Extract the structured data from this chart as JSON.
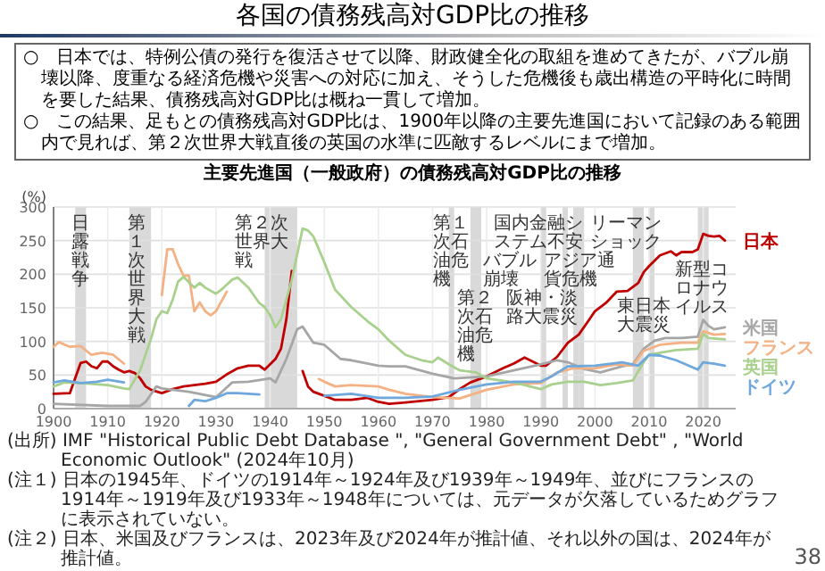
{
  "chart_data": {
    "type": "line",
    "title": "各国の債務残高対GDP比の推移",
    "subtitle": "主要先進国（一般政府）の債務残高対GDP比の推移",
    "ylabel": "(%)",
    "annotations": [
      "○　日本では、特例公債の発行を復活させて以降、財政健全化の取組を進めてきたが、バブル崩壊以降、度重なる経済危機や災害への対応に加え、そうした危機後も歳出構造の平時化に時間を要した結果、債務残高対GDP比は概ね一貫して増加。",
      "○　この結果、足もとの債務残高対GDP比は、1900年以降の主要先進国において記録のある範囲内で見れば、第２次世界大戦直後の英国の水準に匹敵するレベルにまで増加。",
      "(出所) IMF \"Historical Public Debt Database \", \"General Government Debt\" , \"World Economic Outlook\" (2024年10月)",
      "(注１) 日本の1945年、ドイツの1914年～1924年及び1939年～1949年、並びにフランスの1914年～1919年及び1933年～1948年については、元データが欠落しているためグラフに表示されていない。",
      "(注２) 日本、米国及びフランスは、2023年及び2024年が推計値、それ以外の国は、2024年が推計値。",
      "38"
    ],
    "xlim": [
      1900,
      2026
    ],
    "ylim": [
      0,
      300
    ],
    "xticks": [
      1900,
      1910,
      1920,
      1930,
      1940,
      1950,
      1960,
      1970,
      1980,
      1990,
      2000,
      2010,
      2020
    ],
    "yticks": [
      0,
      50,
      100,
      150,
      200,
      250,
      300
    ],
    "grid": true,
    "bands": [
      {
        "axis": "x",
        "from": 1904,
        "to": 1906,
        "label": "日露戦争",
        "color": "#d9d9d9"
      },
      {
        "axis": "x",
        "from": 1914,
        "to": 1918,
        "label": "第１次世界大戦",
        "color": "#d9d9d9"
      },
      {
        "axis": "x",
        "from": 1939,
        "to": 1945,
        "label": "第２次世界大戦",
        "color": "#d9d9d9"
      },
      {
        "axis": "x",
        "from": 1973,
        "to": 1974,
        "label": "第１次石油危機",
        "color": "#d9d9d9"
      },
      {
        "axis": "x",
        "from": 1977,
        "to": 1979,
        "label": "第２次石油危機",
        "color": "#d9d9d9"
      },
      {
        "axis": "x",
        "from": 1990,
        "to": 1991,
        "label": "バブル崩壊",
        "color": "#d9d9d9"
      },
      {
        "axis": "x",
        "from": 1994,
        "to": 1995,
        "label": "阪神・淡路大震災",
        "color": "#d9d9d9"
      },
      {
        "axis": "x",
        "from": 1996,
        "to": 1997,
        "label": "国内金融システム不安",
        "color": "#d9d9d9"
      },
      {
        "axis": "x",
        "from": 1997,
        "to": 1998,
        "label": "アジア通貨危機",
        "color": "#d9d9d9"
      },
      {
        "axis": "x",
        "from": 2007,
        "to": 2009,
        "label": "リーマンショック",
        "color": "#d9d9d9"
      },
      {
        "axis": "x",
        "from": 2010,
        "to": 2011,
        "label": "東日本大震災",
        "color": "#d9d9d9"
      },
      {
        "axis": "x",
        "from": 2019,
        "to": 2021,
        "label": "新型コロナウイルス",
        "color": "#d9d9d9"
      }
    ],
    "series": [
      {
        "name": "日本",
        "color": "#c00000",
        "x": [
          1900,
          1903,
          1905,
          1906,
          1907,
          1908,
          1909,
          1910,
          1911,
          1912,
          1913,
          1914,
          1915,
          1916,
          1917,
          1918,
          1920,
          1921,
          1922,
          1924,
          1926,
          1928,
          1930,
          1932,
          1934,
          1936,
          1938,
          1939,
          1940,
          1941,
          1942,
          1943,
          1944,
          1945,
          1946,
          1947,
          1948,
          1950,
          1952,
          1955,
          1958,
          1960,
          1962,
          1965,
          1970,
          1973,
          1975,
          1977,
          1980,
          1983,
          1985,
          1987,
          1988,
          1990,
          1991,
          1993,
          1995,
          1997,
          1999,
          2000,
          2002,
          2004,
          2006,
          2007,
          2008,
          2009,
          2010,
          2012,
          2014,
          2015,
          2016,
          2018,
          2019,
          2020,
          2021,
          2022,
          2023,
          2024
        ],
        "values": [
          22,
          23,
          68,
          70,
          63,
          60,
          70,
          70,
          63,
          58,
          54,
          56,
          53,
          45,
          33,
          28,
          23,
          26,
          29,
          33,
          35,
          37,
          40,
          51,
          60,
          64,
          64,
          58,
          66,
          74,
          89,
          133,
          205,
          null,
          56,
          33,
          25,
          19,
          13,
          13,
          16,
          10,
          7,
          9,
          13,
          17,
          29,
          39,
          48,
          60,
          67,
          76,
          72,
          64,
          64,
          77,
          98,
          110,
          133,
          145,
          157,
          174,
          175,
          181,
          187,
          203,
          212,
          228,
          234,
          228,
          233,
          233,
          237,
          260,
          257,
          256,
          257,
          250
        ]
      },
      {
        "name": "米国",
        "color": "#a6a6a6",
        "x": [
          1900,
          1910,
          1916,
          1917,
          1919,
          1920,
          1925,
          1930,
          1933,
          1936,
          1940,
          1941,
          1943,
          1945,
          1946,
          1948,
          1950,
          1953,
          1955,
          1960,
          1962,
          1965,
          1970,
          1974,
          1980,
          1985,
          1990,
          1993,
          1995,
          1998,
          2001,
          2005,
          2007,
          2009,
          2011,
          2013,
          2016,
          2019,
          2020,
          2021,
          2022,
          2024
        ],
        "values": [
          7,
          4,
          4,
          10,
          33,
          30,
          25,
          17,
          39,
          40,
          45,
          39,
          74,
          118,
          122,
          98,
          95,
          74,
          72,
          64,
          63,
          63,
          52,
          45,
          48,
          57,
          66,
          72,
          69,
          59,
          54,
          63,
          66,
          89,
          101,
          105,
          105,
          107,
          132,
          123,
          118,
          121
        ]
      },
      {
        "name": "フランス",
        "color": "#f4b183",
        "x": [
          1900,
          1901,
          1903,
          1905,
          1907,
          1909,
          1911,
          1913,
          1914,
          1920,
          1921,
          1922,
          1923,
          1924,
          1925,
          1926,
          1927,
          1928,
          1929,
          1930,
          1932,
          1933,
          1949,
          1950,
          1952,
          1955,
          1960,
          1962,
          1965,
          1970,
          1975,
          1980,
          1985,
          1990,
          1993,
          1996,
          2000,
          2004,
          2007,
          2009,
          2012,
          2016,
          2019,
          2020,
          2022,
          2024
        ],
        "values": [
          92,
          99,
          92,
          93,
          80,
          83,
          80,
          67,
          null,
          169,
          237,
          237,
          215,
          198,
          198,
          145,
          158,
          145,
          139,
          145,
          174,
          null,
          44,
          40,
          33,
          35,
          33,
          28,
          22,
          17,
          15,
          28,
          36,
          38,
          54,
          60,
          60,
          66,
          64,
          86,
          95,
          98,
          98,
          115,
          110,
          111
        ]
      },
      {
        "name": "英国",
        "color": "#a9d18e",
        "x": [
          1900,
          1902,
          1905,
          1910,
          1913,
          1914,
          1916,
          1918,
          1919,
          1920,
          1921,
          1922,
          1923,
          1924,
          1926,
          1927,
          1928,
          1930,
          1931,
          1933,
          1934,
          1936,
          1938,
          1939,
          1940,
          1941,
          1942,
          1944,
          1946,
          1947,
          1948,
          1950,
          1952,
          1955,
          1958,
          1960,
          1962,
          1965,
          1968,
          1970,
          1971,
          1973,
          1975,
          1978,
          1980,
          1985,
          1988,
          1990,
          1992,
          1995,
          1998,
          2001,
          2004,
          2007,
          2009,
          2010,
          2012,
          2015,
          2019,
          2020,
          2021,
          2024
        ],
        "values": [
          33,
          39,
          38,
          35,
          30,
          29,
          57,
          104,
          133,
          145,
          142,
          162,
          189,
          196,
          180,
          187,
          180,
          171,
          177,
          192,
          195,
          180,
          157,
          151,
          139,
          121,
          133,
          192,
          268,
          265,
          256,
          218,
          177,
          151,
          130,
          118,
          101,
          80,
          72,
          69,
          76,
          66,
          57,
          54,
          45,
          39,
          33,
          29,
          36,
          40,
          40,
          35,
          38,
          42,
          69,
          80,
          83,
          87,
          89,
          111,
          105,
          103
        ]
      },
      {
        "name": "ドイツ",
        "color": "#6fa8dc",
        "x": [
          1900,
          1902,
          1905,
          1908,
          1910,
          1913,
          1914,
          1925,
          1926,
          1928,
          1930,
          1932,
          1934,
          1938,
          1939,
          1950,
          1955,
          1960,
          1965,
          1970,
          1975,
          1980,
          1985,
          1990,
          1992,
          1995,
          2000,
          2005,
          2008,
          2010,
          2012,
          2015,
          2019,
          2020,
          2022,
          2024
        ],
        "values": [
          39,
          42,
          38,
          40,
          43,
          39,
          null,
          4,
          13,
          11,
          16,
          23,
          23,
          21,
          null,
          19,
          22,
          16,
          16,
          18,
          28,
          36,
          40,
          40,
          48,
          63,
          64,
          69,
          64,
          80,
          79,
          72,
          58,
          69,
          67,
          64
        ]
      }
    ]
  }
}
